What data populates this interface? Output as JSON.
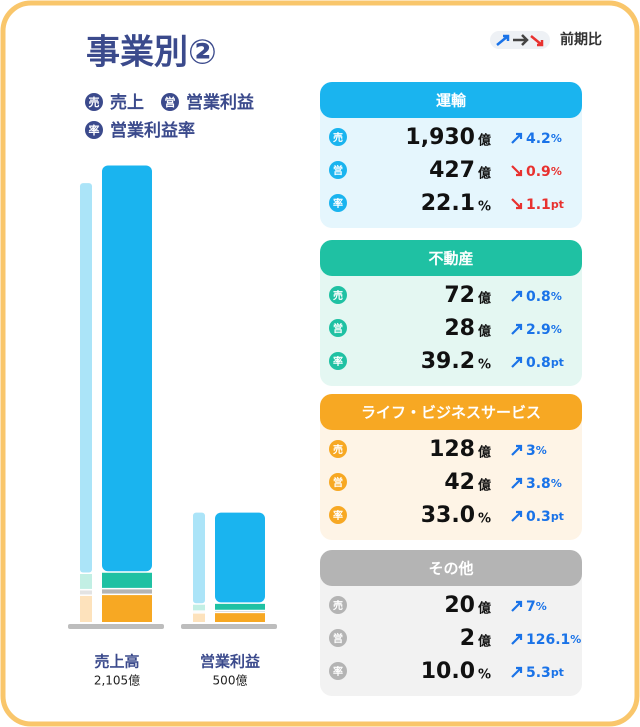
{
  "header": {
    "title": "事業別②",
    "compare_label": "前期比",
    "legend": [
      {
        "badge": "売",
        "label": "売上"
      },
      {
        "badge": "営",
        "label": "営業利益"
      },
      {
        "badge": "率",
        "label": "営業利益率"
      }
    ]
  },
  "chart_data": {
    "type": "bar",
    "stacked": true,
    "categories": [
      "売上高",
      "営業利益"
    ],
    "category_totals": [
      "2,105億",
      "500億"
    ],
    "ylim": [
      0,
      2150
    ],
    "series": [
      {
        "name": "ライフ・ビジネスサービス",
        "color": "#f7a823",
        "light_color": "#fde2bc",
        "values": [
          128,
          42
        ],
        "previous_values": [
          124,
          40
        ]
      },
      {
        "name": "その他",
        "color": "#b4b4b4",
        "light_color": "#e3e3e3",
        "values": [
          20,
          2
        ],
        "previous_values": [
          19,
          1
        ]
      },
      {
        "name": "不動産",
        "color": "#1fc1a3",
        "light_color": "#c2efe4",
        "values": [
          72,
          28
        ],
        "previous_values": [
          71,
          27
        ]
      },
      {
        "name": "運輸",
        "color": "#1ab4ef",
        "light_color": "#abe4f8",
        "values": [
          1930,
          427
        ],
        "previous_values": [
          1852,
          431
        ]
      }
    ]
  },
  "segments": [
    {
      "title": "運輸",
      "color": "#1ab4ef",
      "bg": "#e5f6fd",
      "rows": [
        {
          "badge": "売",
          "value": "1,930",
          "unit": "億",
          "change": 4.2,
          "change_unit": "%",
          "direction": "up"
        },
        {
          "badge": "営",
          "value": "427",
          "unit": "億",
          "change": 0.9,
          "change_unit": "%",
          "direction": "down"
        },
        {
          "badge": "率",
          "value": "22.1",
          "unit": "%",
          "change": 1.1,
          "change_unit": "pt",
          "direction": "down"
        }
      ]
    },
    {
      "title": "不動産",
      "color": "#1fc1a3",
      "bg": "#e4f7f2",
      "rows": [
        {
          "badge": "売",
          "value": "72",
          "unit": "億",
          "change": 0.8,
          "change_unit": "%",
          "direction": "up"
        },
        {
          "badge": "営",
          "value": "28",
          "unit": "億",
          "change": 2.9,
          "change_unit": "%",
          "direction": "up"
        },
        {
          "badge": "率",
          "value": "39.2",
          "unit": "%",
          "change": 0.8,
          "change_unit": "pt",
          "direction": "up"
        }
      ]
    },
    {
      "title": "ライフ・ビジネスサービス",
      "color": "#f7a823",
      "bg": "#fef4e6",
      "rows": [
        {
          "badge": "売",
          "value": "128",
          "unit": "億",
          "change": 3.0,
          "change_unit": "%",
          "direction": "up"
        },
        {
          "badge": "営",
          "value": "42",
          "unit": "億",
          "change": 3.8,
          "change_unit": "%",
          "direction": "up"
        },
        {
          "badge": "率",
          "value": "33.0",
          "unit": "%",
          "change": 0.3,
          "change_unit": "pt",
          "direction": "up"
        }
      ]
    },
    {
      "title": "その他",
      "color": "#b4b4b4",
      "bg": "#f2f2f2",
      "rows": [
        {
          "badge": "売",
          "value": "20",
          "unit": "億",
          "change": 7.0,
          "change_unit": "%",
          "direction": "up"
        },
        {
          "badge": "営",
          "value": "2",
          "unit": "億",
          "change": 126.1,
          "change_unit": "%",
          "direction": "up"
        },
        {
          "badge": "率",
          "value": "10.0",
          "unit": "%",
          "change": 5.3,
          "change_unit": "pt",
          "direction": "up"
        }
      ]
    }
  ]
}
